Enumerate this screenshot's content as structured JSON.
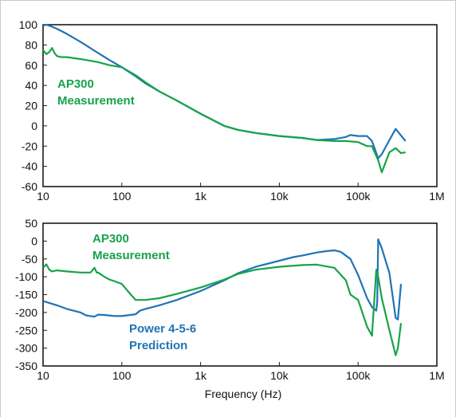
{
  "colors": {
    "measurement": "#16a34a",
    "prediction": "#1f73b7",
    "axis": "#1a1a1a",
    "background": "#ffffff"
  },
  "chart_data": [
    {
      "type": "line",
      "xscale": "log",
      "xlim": [
        10,
        1000000
      ],
      "ylim": [
        -60,
        100
      ],
      "xticks": [
        {
          "value": 10,
          "label": "10"
        },
        {
          "value": 100,
          "label": "100"
        },
        {
          "value": 1000,
          "label": "1k"
        },
        {
          "value": 10000,
          "label": "10k"
        },
        {
          "value": 100000,
          "label": "100k"
        },
        {
          "value": 1000000,
          "label": "1M"
        }
      ],
      "yticks": [
        100,
        80,
        60,
        40,
        20,
        0,
        -20,
        -40,
        -60
      ],
      "annotations": [
        {
          "lines": [
            "AP300",
            "Measurement"
          ],
          "color": "#16a34a"
        }
      ],
      "series": [
        {
          "color": "#1f73b7",
          "x": [
            10,
            11,
            13,
            15,
            20,
            30,
            50,
            70,
            100,
            150,
            200,
            300,
            500,
            1000,
            2000,
            3000,
            5000,
            10000,
            20000,
            30000,
            50000,
            70000,
            80000,
            100000,
            130000,
            150000,
            180000,
            200000,
            250000,
            300000,
            400000
          ],
          "y": [
            99,
            100,
            98,
            96,
            91,
            83,
            72,
            65,
            58,
            49,
            42,
            34,
            25,
            12,
            0,
            -4,
            -7,
            -10,
            -12,
            -14,
            -13,
            -11,
            -9,
            -10,
            -10,
            -15,
            -32,
            -28,
            -14,
            -3,
            -15
          ]
        },
        {
          "color": "#16a34a",
          "x": [
            10,
            11,
            12,
            13,
            14,
            15,
            17,
            20,
            30,
            50,
            70,
            100,
            150,
            200,
            300,
            500,
            1000,
            2000,
            3000,
            5000,
            10000,
            20000,
            30000,
            50000,
            70000,
            100000,
            130000,
            150000,
            180000,
            200000,
            250000,
            300000,
            350000,
            400000
          ],
          "y": [
            75,
            71,
            73,
            77,
            72,
            69,
            68,
            68,
            66,
            63,
            60,
            58,
            50,
            43,
            34,
            25,
            12,
            0,
            -4,
            -7,
            -10,
            -12,
            -14,
            -15,
            -15,
            -16,
            -20,
            -20,
            -34,
            -46,
            -26,
            -22,
            -27,
            -26
          ]
        }
      ]
    },
    {
      "type": "line",
      "xscale": "log",
      "xlim": [
        10,
        1000000
      ],
      "ylim": [
        -350,
        50
      ],
      "xticks": [
        {
          "value": 10,
          "label": "10"
        },
        {
          "value": 100,
          "label": "100"
        },
        {
          "value": 1000,
          "label": "1k"
        },
        {
          "value": 10000,
          "label": "10k"
        },
        {
          "value": 100000,
          "label": "100k"
        },
        {
          "value": 1000000,
          "label": "1M"
        }
      ],
      "yticks": [
        50,
        0,
        -50,
        -100,
        -150,
        -200,
        -250,
        -300,
        -350
      ],
      "xlabel": "Frequency (Hz)",
      "annotations": [
        {
          "lines": [
            "AP300",
            "Measurement"
          ],
          "color": "#16a34a"
        },
        {
          "lines": [
            "Power 4-5-6",
            "Prediction"
          ],
          "color": "#1f73b7"
        }
      ],
      "series": [
        {
          "color": "#1f73b7",
          "x": [
            10,
            15,
            20,
            30,
            35,
            40,
            45,
            50,
            60,
            80,
            100,
            150,
            170,
            200,
            300,
            500,
            1000,
            2000,
            3000,
            5000,
            10000,
            15000,
            20000,
            30000,
            40000,
            50000,
            60000,
            80000,
            100000,
            130000,
            150000,
            170000,
            175000,
            180000,
            200000,
            250000,
            300000,
            320000,
            350000
          ],
          "y": [
            -168,
            -180,
            -190,
            -200,
            -208,
            -210,
            -212,
            -206,
            -207,
            -210,
            -210,
            -205,
            -195,
            -190,
            -180,
            -165,
            -140,
            -110,
            -90,
            -72,
            -55,
            -45,
            -40,
            -32,
            -28,
            -26,
            -30,
            -50,
            -95,
            -160,
            -185,
            -195,
            -170,
            5,
            -20,
            -90,
            -215,
            -220,
            -120
          ]
        },
        {
          "color": "#16a34a",
          "x": [
            10,
            11,
            12,
            13,
            15,
            20,
            30,
            40,
            45,
            48,
            50,
            60,
            70,
            80,
            100,
            130,
            150,
            200,
            300,
            500,
            1000,
            2000,
            3000,
            5000,
            10000,
            20000,
            30000,
            50000,
            70000,
            80000,
            100000,
            130000,
            150000,
            170000,
            180000,
            200000,
            250000,
            300000,
            320000,
            350000
          ],
          "y": [
            -75,
            -65,
            -80,
            -85,
            -82,
            -85,
            -88,
            -88,
            -75,
            -88,
            -88,
            -100,
            -108,
            -112,
            -120,
            -150,
            -165,
            -165,
            -160,
            -148,
            -130,
            -108,
            -92,
            -80,
            -72,
            -67,
            -66,
            -75,
            -110,
            -150,
            -165,
            -240,
            -265,
            -80,
            -100,
            -160,
            -250,
            -320,
            -300,
            -230
          ]
        }
      ]
    }
  ]
}
